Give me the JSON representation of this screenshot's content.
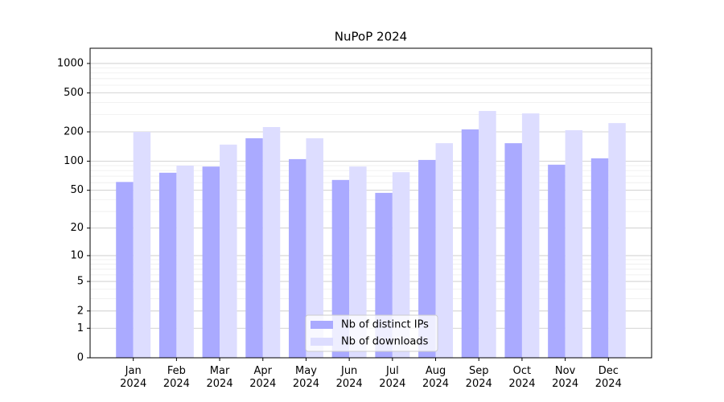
{
  "chart_data": {
    "type": "bar",
    "title": "NuPoP 2024",
    "categories": [
      "Jan\n2024",
      "Feb\n2024",
      "Mar\n2024",
      "Apr\n2024",
      "May\n2024",
      "Jun\n2024",
      "Jul\n2024",
      "Aug\n2024",
      "Sep\n2024",
      "Oct\n2024",
      "Nov\n2024",
      "Dec\n2024"
    ],
    "series": [
      {
        "name": "Nb of distinct IPs",
        "color": "#aaaaff",
        "values": [
          61,
          76,
          88,
          172,
          105,
          64,
          47,
          103,
          212,
          153,
          92,
          107
        ]
      },
      {
        "name": "Nb of downloads",
        "color": "#ddddff",
        "values": [
          200,
          90,
          148,
          224,
          172,
          88,
          77,
          153,
          327,
          309,
          208,
          246
        ]
      }
    ],
    "y_scale": "log1p",
    "ylim": [
      0,
      1430
    ],
    "yticks": [
      0,
      1,
      2,
      5,
      10,
      20,
      50,
      100,
      200,
      500,
      1000
    ],
    "minor_yticks": [
      3,
      4,
      6,
      7,
      8,
      9,
      30,
      40,
      60,
      70,
      80,
      90,
      300,
      400,
      600,
      700,
      800,
      900
    ],
    "grid": true,
    "legend": "lower center"
  }
}
